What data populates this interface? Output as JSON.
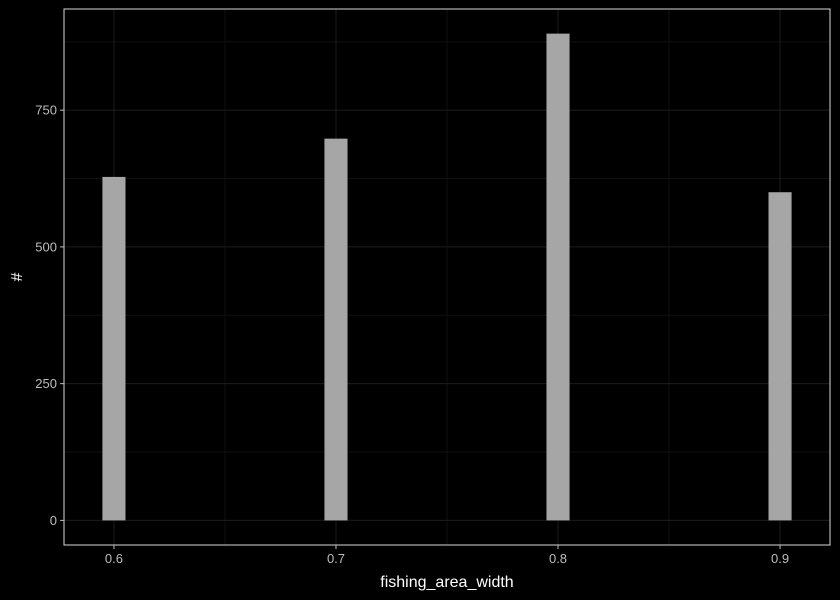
{
  "chart_data": {
    "type": "bar",
    "title": "",
    "xlabel": "fishing_area_width",
    "ylabel": "#",
    "x": [
      0.6,
      0.7,
      0.8,
      0.9
    ],
    "values": [
      628,
      698,
      890,
      600
    ],
    "xlim": [
      0.5775,
      0.9225
    ],
    "ylim": [
      -45,
      935
    ],
    "x_ticks": [
      0.6,
      0.7,
      0.8,
      0.9
    ],
    "x_tick_labels": [
      "0.6",
      "0.7",
      "0.8",
      "0.9"
    ],
    "y_ticks": [
      0,
      250,
      500,
      750
    ],
    "y_tick_labels": [
      "0",
      "250",
      "500",
      "750"
    ],
    "grid": true,
    "legend": "none",
    "colors": {
      "background": "#000000",
      "panel_border": "#d9d9d9",
      "grid_major": "#1c1c1c",
      "grid_minor": "#101010",
      "bar_fill": "#a6a6a6",
      "tick_text": "#bdbdbd",
      "axis_title_text": "#ffffff"
    }
  }
}
